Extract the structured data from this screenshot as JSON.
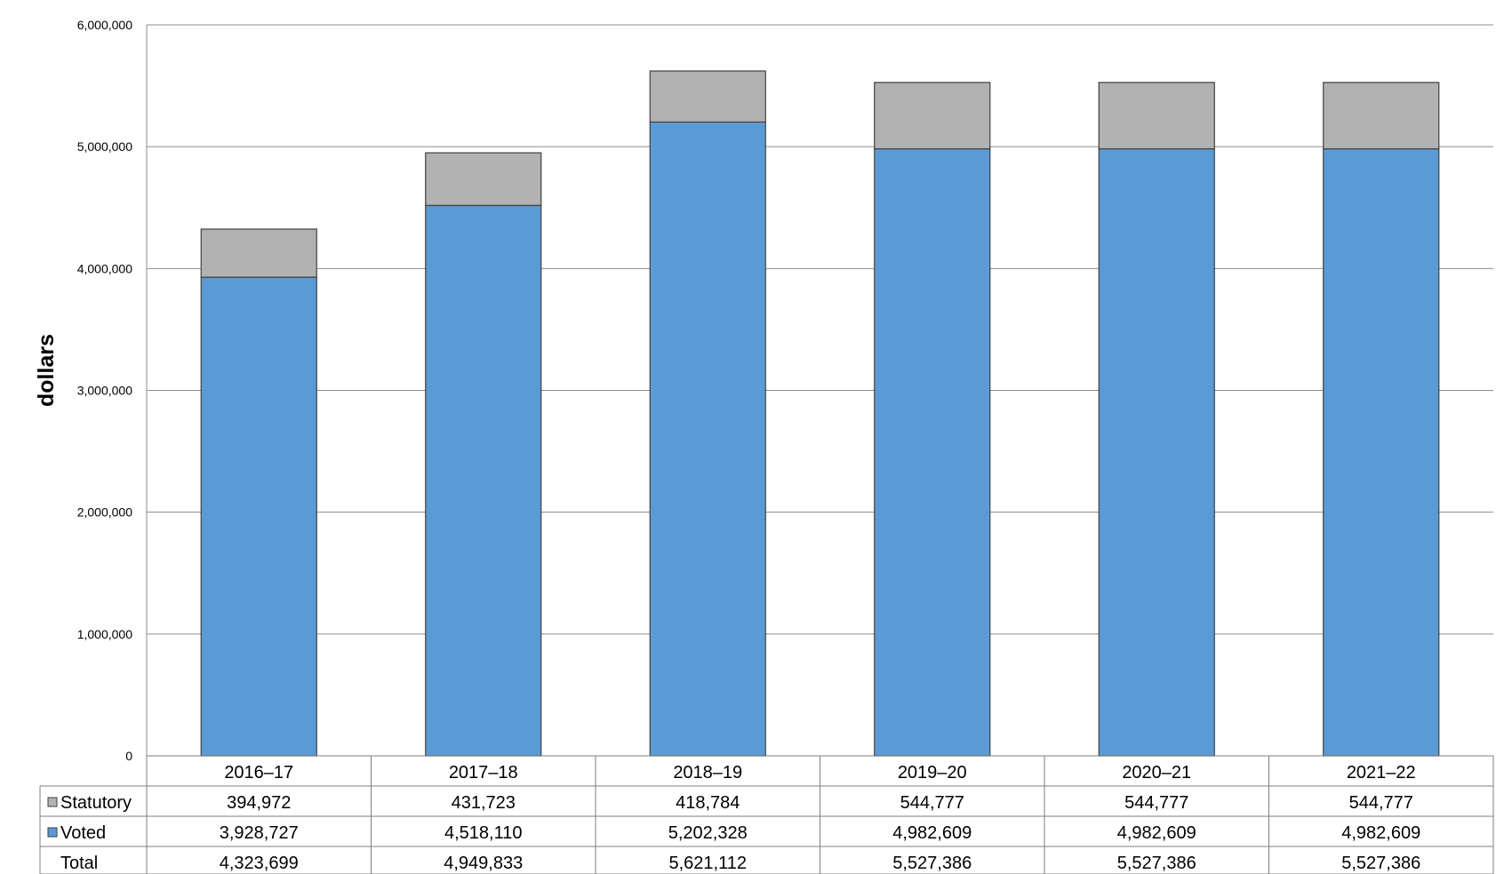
{
  "chart_data": {
    "type": "bar",
    "stacked": true,
    "categories": [
      "2016–17",
      "2017–18",
      "2018–19",
      "2019–20",
      "2020–21",
      "2021–22"
    ],
    "series": [
      {
        "name": "Voted",
        "color": "#5b9bd5",
        "values": [
          3928727,
          4518110,
          5202328,
          4982609,
          4982609,
          4982609
        ],
        "labels": [
          "3,928,727",
          "4,518,110",
          "5,202,328",
          "4,982,609",
          "4,982,609",
          "4,982,609"
        ]
      },
      {
        "name": "Statutory",
        "color": "#b2b2b2",
        "values": [
          394972,
          431723,
          418784,
          544777,
          544777,
          544777
        ],
        "labels": [
          "394,972",
          "431,723",
          "418,784",
          "544,777",
          "544,777",
          "544,777"
        ]
      }
    ],
    "total": {
      "name": "Total",
      "values": [
        4323699,
        4949833,
        5621112,
        5527386,
        5527386,
        5527386
      ],
      "labels": [
        "4,323,699",
        "4,949,833",
        "5,621,112",
        "5,527,386",
        "5,527,386",
        "5,527,386"
      ]
    },
    "ylabel": "dollars",
    "ylim": [
      0,
      6000000
    ],
    "yticks": [
      0,
      1000000,
      2000000,
      3000000,
      4000000,
      5000000,
      6000000
    ],
    "ytick_labels": [
      "0",
      "1,000,000",
      "2,000,000",
      "3,000,000",
      "4,000,000",
      "5,000,000",
      "6,000,000"
    ],
    "grid": true,
    "legend": "data-table"
  }
}
